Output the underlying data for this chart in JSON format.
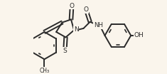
{
  "bg_color": "#faf5ec",
  "line_color": "#2a2a2a",
  "lw": 1.4,
  "fs": 6.5,
  "xlim": [
    0.0,
    1.0
  ],
  "ylim": [
    0.0,
    1.0
  ]
}
